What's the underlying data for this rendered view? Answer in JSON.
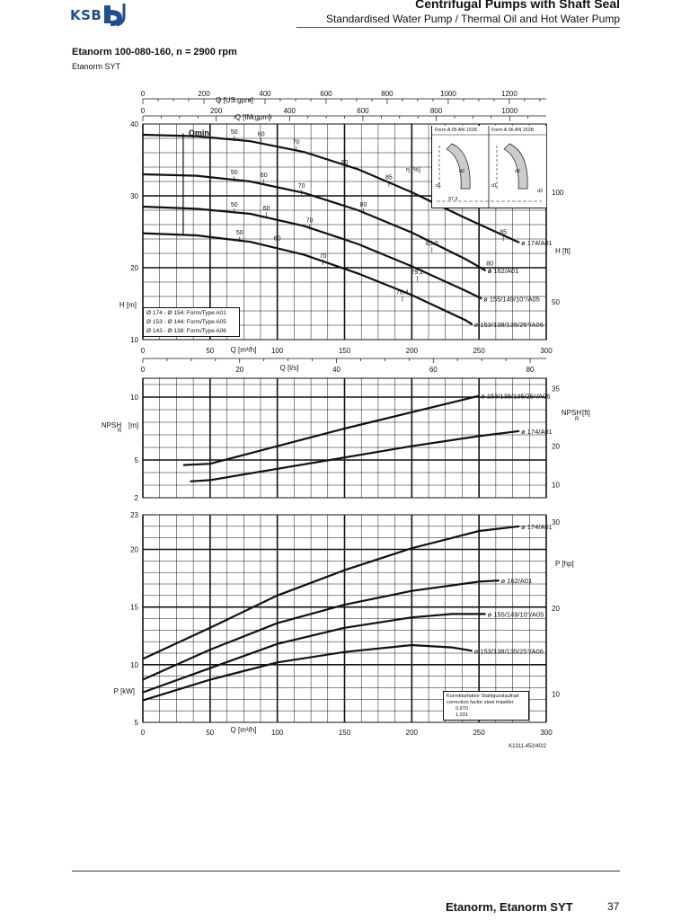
{
  "header": {
    "logo_text": "KSB",
    "title": "Centrifugal Pumps with Shaft Seal",
    "subtitle": "Standardised Water Pump / Thermal Oil and Hot Water Pump"
  },
  "model": {
    "title": "Etanorm 100-080-160, n = 2900 rpm",
    "subtitle": "Etanorm SYT"
  },
  "axes_text": {
    "q_usgpm": "Q [US.gpm]",
    "q_imgpm": "Q [IM.gpm]",
    "q_m3h": "Q [m³/h]",
    "q_ls": "Q [l/s]",
    "h_m": "H [m]",
    "h_ft": "H [ft]",
    "npsh_m": "NPSH",
    "npsh_ft": "NPSH",
    "npsh_sub": "R",
    "npsh_m_unit": "[m]",
    "npsh_ft_unit": "[ft]",
    "p_kw": "P [kW]",
    "p_hp": "P [hp]",
    "qmin": "Qmin",
    "eta": "η [%]"
  },
  "legend_lines": [
    "Ø 174 - Ø 154: Form/Type A01",
    "Ø 153 - Ø 144: Form/Type A05",
    "Ø 143 - Ø 138: Form/Type A06"
  ],
  "inset": {
    "form1": "Form A 05 AN 1528",
    "form2": "Form A 06 AN 1528",
    "labels": [
      "d1",
      "d2",
      "d1",
      "d2",
      "d3",
      "97.3"
    ]
  },
  "correction": {
    "line1": "Korrekturfaktor Stahlgusslaufrad",
    "line2": "correction factor steel impeller",
    "v1": "0,970",
    "v2": "1,031"
  },
  "drawing_ref": "K1311.452/40/2",
  "footer": {
    "title": "Etanorm, Etanorm SYT",
    "page": "37"
  },
  "chart_data": [
    {
      "type": "line",
      "title": "Head",
      "xlabel": "Q [m³/h]",
      "ylabel": "H [m]",
      "xlim": [
        0,
        300
      ],
      "ylim": [
        10,
        40
      ],
      "x_ticks": [
        0,
        50,
        100,
        150,
        200,
        250,
        300
      ],
      "y_ticks": [
        10,
        20,
        30,
        40
      ],
      "y2_ticks": [
        {
          "label": "50",
          "at": 15.24
        },
        {
          "label": "100",
          "at": 30.48
        }
      ],
      "top_axis_usgpm": [
        0,
        200,
        400,
        600,
        800,
        1000,
        1200
      ],
      "top_axis_imgpm": [
        0,
        200,
        400,
        600,
        800,
        1000
      ],
      "ls_axis": [
        0,
        20,
        40,
        60,
        80
      ],
      "series": [
        {
          "name": "ø 174/A01",
          "x": [
            0,
            40,
            80,
            120,
            160,
            200,
            240,
            280
          ],
          "y": [
            38.5,
            38.3,
            37.6,
            36.1,
            33.7,
            30.5,
            26.9,
            23.5
          ]
        },
        {
          "name": "ø 162/A01",
          "x": [
            0,
            40,
            80,
            120,
            160,
            200,
            240,
            255
          ],
          "y": [
            33.0,
            32.8,
            32.0,
            30.4,
            28.0,
            24.9,
            21.2,
            19.6
          ]
        },
        {
          "name": "ø 155/149/10°/A05",
          "x": [
            0,
            40,
            80,
            120,
            160,
            200,
            240,
            252
          ],
          "y": [
            28.5,
            28.2,
            27.5,
            25.8,
            23.3,
            20.2,
            16.8,
            15.7
          ]
        },
        {
          "name": "ø 153/138/135/25°/A06",
          "x": [
            0,
            40,
            80,
            120,
            160,
            200,
            240,
            245
          ],
          "y": [
            24.8,
            24.5,
            23.6,
            21.8,
            19.2,
            16.2,
            12.7,
            12.1
          ]
        }
      ],
      "efficiency_labels": [
        {
          "text": "50",
          "q": 68,
          "h": 38.6
        },
        {
          "text": "60",
          "q": 88,
          "h": 38.3
        },
        {
          "text": "70",
          "q": 114,
          "h": 37.2
        },
        {
          "text": "80",
          "q": 150,
          "h": 34.4
        },
        {
          "text": "85",
          "q": 183,
          "h": 32.3
        },
        {
          "text": "50",
          "q": 68,
          "h": 33.0
        },
        {
          "text": "60",
          "q": 90,
          "h": 32.6
        },
        {
          "text": "70",
          "q": 118,
          "h": 31.1
        },
        {
          "text": "80",
          "q": 164,
          "h": 28.5
        },
        {
          "text": "83.0",
          "q": 215,
          "h": 23.1
        },
        {
          "text": "85",
          "q": 268,
          "h": 24.7
        },
        {
          "text": "50",
          "q": 68,
          "h": 28.5
        },
        {
          "text": "60",
          "q": 92,
          "h": 28.0
        },
        {
          "text": "70",
          "q": 124,
          "h": 26.3
        },
        {
          "text": "79.2",
          "q": 204,
          "h": 19.1
        },
        {
          "text": "80",
          "q": 258,
          "h": 20.3
        },
        {
          "text": "50",
          "q": 72,
          "h": 24.6
        },
        {
          "text": "60",
          "q": 100,
          "h": 23.8
        },
        {
          "text": "70",
          "q": 134,
          "h": 21.4
        },
        {
          "text": "76.4",
          "q": 193,
          "h": 16.3
        }
      ]
    },
    {
      "type": "line",
      "title": "NPSH",
      "xlabel": "Q [m³/h]",
      "ylabel": "NPSH R [m]",
      "xlim": [
        0,
        300
      ],
      "ylim": [
        2,
        11.5
      ],
      "y_ticks": [
        2,
        5,
        10
      ],
      "y2_ticks": [
        {
          "label": "10",
          "at": 3.05
        },
        {
          "label": "20",
          "at": 6.1
        },
        {
          "label": "35",
          "at": 10.67
        }
      ],
      "series": [
        {
          "name": "ø 153/138/135/25°/A06",
          "x": [
            30,
            50,
            100,
            150,
            200,
            250
          ],
          "y": [
            4.6,
            4.7,
            6.1,
            7.5,
            8.8,
            10.1
          ]
        },
        {
          "name": "ø 174/A01",
          "x": [
            35,
            50,
            100,
            150,
            200,
            250,
            280
          ],
          "y": [
            3.3,
            3.4,
            4.3,
            5.2,
            6.1,
            6.9,
            7.3
          ]
        }
      ]
    },
    {
      "type": "line",
      "title": "Power",
      "xlabel": "Q [m³/h]",
      "ylabel": "P [kW]",
      "xlim": [
        0,
        300
      ],
      "ylim": [
        5,
        23
      ],
      "x_ticks": [
        0,
        50,
        100,
        150,
        200,
        250,
        300
      ],
      "y_ticks": [
        5,
        10,
        15,
        20,
        23
      ],
      "y2_ticks": [
        {
          "label": "10",
          "at": 7.46
        },
        {
          "label": "20",
          "at": 14.91
        },
        {
          "label": "30",
          "at": 22.37
        }
      ],
      "series": [
        {
          "name": "ø 174/A01",
          "x": [
            0,
            50,
            100,
            150,
            200,
            250,
            280
          ],
          "y": [
            10.5,
            13.2,
            16.0,
            18.2,
            20.1,
            21.6,
            22.0
          ]
        },
        {
          "name": "ø 162/A01",
          "x": [
            0,
            50,
            100,
            150,
            200,
            250,
            265
          ],
          "y": [
            8.7,
            11.3,
            13.6,
            15.2,
            16.4,
            17.2,
            17.3
          ]
        },
        {
          "name": "ø 155/149/10°/A05",
          "x": [
            0,
            50,
            100,
            150,
            200,
            230,
            255
          ],
          "y": [
            7.6,
            9.7,
            11.8,
            13.2,
            14.1,
            14.4,
            14.4
          ]
        },
        {
          "name": "ø 153/138/135/25°/A06",
          "x": [
            0,
            50,
            100,
            150,
            200,
            230,
            245
          ],
          "y": [
            6.9,
            8.7,
            10.2,
            11.1,
            11.7,
            11.5,
            11.2
          ]
        }
      ]
    }
  ]
}
